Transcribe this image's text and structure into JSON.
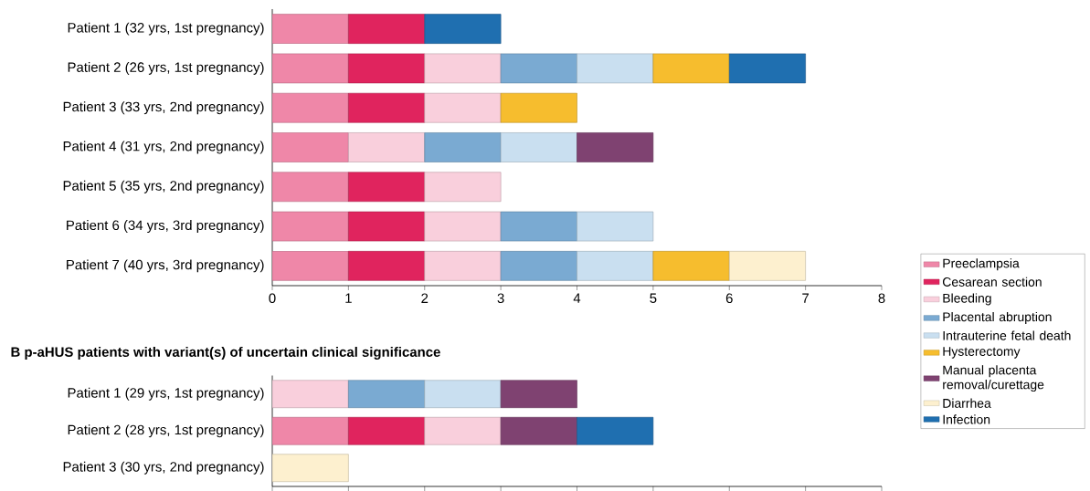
{
  "chart_data": [
    {
      "type": "bar",
      "orientation": "horizontal",
      "stacked": true,
      "legend": "right",
      "xlim": [
        0,
        8
      ],
      "xticks": [
        0,
        1,
        2,
        3,
        4,
        5,
        6,
        7,
        8
      ],
      "categories": [
        "Patient 1 (32 yrs, 1st pregnancy)",
        "Patient 2 (26 yrs, 1st pregnancy)",
        "Patient 3 (33 yrs, 2nd pregnancy)",
        "Patient 4 (31 yrs, 2nd pregnancy)",
        "Patient 5 (35 yrs, 2nd pregnancy)",
        "Patient 6 (34 yrs, 3rd pregnancy)",
        "Patient 7 (40 yrs, 3rd pregnancy)"
      ],
      "series": [
        {
          "name": "Preeclampsia",
          "color": "#ef87a8",
          "values": [
            1,
            1,
            1,
            1,
            1,
            1,
            1
          ]
        },
        {
          "name": "Cesarean section",
          "color": "#e0245e",
          "values": [
            1,
            1,
            1,
            null,
            1,
            1,
            1
          ]
        },
        {
          "name": "Bleeding",
          "color": "#f9cfdc",
          "values": [
            null,
            1,
            1,
            1,
            1,
            1,
            1
          ]
        },
        {
          "name": "Placental abruption",
          "color": "#7aaad2",
          "values": [
            null,
            1,
            null,
            1,
            null,
            1,
            1
          ]
        },
        {
          "name": "Intrauterine fetal death",
          "color": "#c9dff0",
          "values": [
            null,
            1,
            null,
            1,
            null,
            1,
            1
          ]
        },
        {
          "name": "Hysterectomy",
          "color": "#f6bd2e",
          "values": [
            null,
            1,
            1,
            null,
            null,
            null,
            1
          ]
        },
        {
          "name": "Manual placenta removal/curettage",
          "color": "#7f4271",
          "values": [
            null,
            null,
            null,
            1,
            null,
            null,
            null
          ]
        },
        {
          "name": "Diarrhea",
          "color": "#fdf0cf",
          "values": [
            null,
            null,
            null,
            null,
            null,
            null,
            1
          ]
        },
        {
          "name": "Infection",
          "color": "#1f6fb0",
          "values": [
            1,
            1,
            null,
            null,
            null,
            null,
            null
          ]
        }
      ]
    },
    {
      "type": "bar",
      "orientation": "horizontal",
      "stacked": true,
      "title": "B  p-aHUS patients with variant(s) of uncertain clinical significance",
      "xlim": [
        0,
        8
      ],
      "xticks": [
        0,
        1,
        2,
        3,
        4,
        5,
        6,
        7,
        8
      ],
      "tick_labels": "y",
      "categories": [
        "Patient 1 (29 yrs, 1st pregnancy)",
        "Patient 2 (28 yrs, 1st pregnancy)",
        "Patient 3 (30 yrs, 2nd pregnancy)"
      ],
      "series": [
        {
          "color": "#ef87a8",
          "values": [
            null,
            1,
            null
          ]
        },
        {
          "color": "#e0245e",
          "values": [
            null,
            1,
            null
          ]
        },
        {
          "color": "#f9cfdc",
          "values": [
            1,
            1,
            null
          ]
        },
        {
          "color": "#7aaad2",
          "values": [
            1,
            null,
            null
          ]
        },
        {
          "color": "#c9dff0",
          "values": [
            1,
            null,
            null
          ]
        },
        {
          "color": "#7f4271",
          "values": [
            1,
            1,
            null
          ]
        },
        {
          "color": "#fdf0cf",
          "values": [
            null,
            null,
            1
          ]
        },
        {
          "color": "#1f6fb0",
          "values": [
            null,
            1,
            null
          ]
        }
      ]
    }
  ]
}
